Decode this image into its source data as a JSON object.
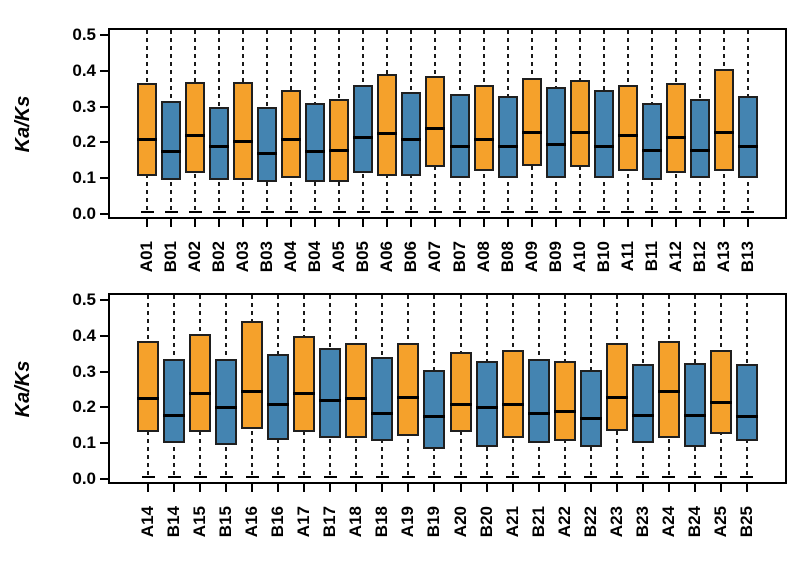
{
  "figure": {
    "background": "#FFFFFF",
    "axis_color": "#000000",
    "text_color": "#000000",
    "group_colors": {
      "A": "#F5A12B",
      "B": "#4484B1"
    },
    "box_border_color": "#1F1F1F",
    "median_color": "#000000"
  },
  "chart_data": [
    {
      "type": "boxplot",
      "panel": "top",
      "title": "",
      "xlabel": "",
      "ylabel": "Ka/Ks",
      "ylim": [
        0.0,
        0.5
      ],
      "yticks": [
        "0.0",
        "0.1",
        "0.2",
        "0.3",
        "0.4",
        "0.5"
      ],
      "grid": false,
      "legend": "none",
      "whisker_style": "dashed; clipped at top of axis (0.5); capped just above 0 at bottom",
      "categories": [
        "A01",
        "B01",
        "A02",
        "B02",
        "A03",
        "B03",
        "A04",
        "B04",
        "A05",
        "B05",
        "A06",
        "B06",
        "A07",
        "B07",
        "A08",
        "B08",
        "A09",
        "B09",
        "A10",
        "B10",
        "A11",
        "B11",
        "A12",
        "B12",
        "A13",
        "B13"
      ],
      "boxes": [
        {
          "label": "A01",
          "group": "A",
          "q1": 0.105,
          "median": 0.21,
          "q3": 0.365,
          "whisker_low": 0.005,
          "whisker_high": 0.5
        },
        {
          "label": "B01",
          "group": "B",
          "q1": 0.095,
          "median": 0.175,
          "q3": 0.315,
          "whisker_low": 0.005,
          "whisker_high": 0.5
        },
        {
          "label": "A02",
          "group": "A",
          "q1": 0.115,
          "median": 0.22,
          "q3": 0.37,
          "whisker_low": 0.005,
          "whisker_high": 0.5
        },
        {
          "label": "B02",
          "group": "B",
          "q1": 0.095,
          "median": 0.19,
          "q3": 0.3,
          "whisker_low": 0.005,
          "whisker_high": 0.5
        },
        {
          "label": "A03",
          "group": "A",
          "q1": 0.095,
          "median": 0.205,
          "q3": 0.37,
          "whisker_low": 0.005,
          "whisker_high": 0.5
        },
        {
          "label": "B03",
          "group": "B",
          "q1": 0.09,
          "median": 0.17,
          "q3": 0.3,
          "whisker_low": 0.005,
          "whisker_high": 0.5
        },
        {
          "label": "A04",
          "group": "A",
          "q1": 0.1,
          "median": 0.21,
          "q3": 0.345,
          "whisker_low": 0.005,
          "whisker_high": 0.5
        },
        {
          "label": "B04",
          "group": "B",
          "q1": 0.09,
          "median": 0.175,
          "q3": 0.31,
          "whisker_low": 0.005,
          "whisker_high": 0.5
        },
        {
          "label": "A05",
          "group": "A",
          "q1": 0.09,
          "median": 0.18,
          "q3": 0.32,
          "whisker_low": 0.005,
          "whisker_high": 0.5
        },
        {
          "label": "B05",
          "group": "B",
          "q1": 0.115,
          "median": 0.215,
          "q3": 0.36,
          "whisker_low": 0.005,
          "whisker_high": 0.5
        },
        {
          "label": "A06",
          "group": "A",
          "q1": 0.105,
          "median": 0.225,
          "q3": 0.39,
          "whisker_low": 0.005,
          "whisker_high": 0.5
        },
        {
          "label": "B06",
          "group": "B",
          "q1": 0.105,
          "median": 0.21,
          "q3": 0.34,
          "whisker_low": 0.005,
          "whisker_high": 0.5
        },
        {
          "label": "A07",
          "group": "A",
          "q1": 0.13,
          "median": 0.24,
          "q3": 0.385,
          "whisker_low": 0.005,
          "whisker_high": 0.5
        },
        {
          "label": "B07",
          "group": "B",
          "q1": 0.1,
          "median": 0.19,
          "q3": 0.335,
          "whisker_low": 0.005,
          "whisker_high": 0.5
        },
        {
          "label": "A08",
          "group": "A",
          "q1": 0.12,
          "median": 0.21,
          "q3": 0.36,
          "whisker_low": 0.005,
          "whisker_high": 0.5
        },
        {
          "label": "B08",
          "group": "B",
          "q1": 0.1,
          "median": 0.19,
          "q3": 0.33,
          "whisker_low": 0.005,
          "whisker_high": 0.5
        },
        {
          "label": "A09",
          "group": "A",
          "q1": 0.135,
          "median": 0.23,
          "q3": 0.38,
          "whisker_low": 0.005,
          "whisker_high": 0.5
        },
        {
          "label": "B09",
          "group": "B",
          "q1": 0.1,
          "median": 0.195,
          "q3": 0.355,
          "whisker_low": 0.005,
          "whisker_high": 0.5
        },
        {
          "label": "A10",
          "group": "A",
          "q1": 0.13,
          "median": 0.23,
          "q3": 0.375,
          "whisker_low": 0.005,
          "whisker_high": 0.5
        },
        {
          "label": "B10",
          "group": "B",
          "q1": 0.1,
          "median": 0.19,
          "q3": 0.345,
          "whisker_low": 0.005,
          "whisker_high": 0.5
        },
        {
          "label": "A11",
          "group": "A",
          "q1": 0.12,
          "median": 0.22,
          "q3": 0.36,
          "whisker_low": 0.005,
          "whisker_high": 0.5
        },
        {
          "label": "B11",
          "group": "B",
          "q1": 0.095,
          "median": 0.18,
          "q3": 0.31,
          "whisker_low": 0.005,
          "whisker_high": 0.5
        },
        {
          "label": "A12",
          "group": "A",
          "q1": 0.115,
          "median": 0.215,
          "q3": 0.365,
          "whisker_low": 0.005,
          "whisker_high": 0.5
        },
        {
          "label": "B12",
          "group": "B",
          "q1": 0.1,
          "median": 0.18,
          "q3": 0.32,
          "whisker_low": 0.005,
          "whisker_high": 0.5
        },
        {
          "label": "A13",
          "group": "A",
          "q1": 0.12,
          "median": 0.23,
          "q3": 0.405,
          "whisker_low": 0.005,
          "whisker_high": 0.5
        },
        {
          "label": "B13",
          "group": "B",
          "q1": 0.1,
          "median": 0.19,
          "q3": 0.33,
          "whisker_low": 0.005,
          "whisker_high": 0.5
        }
      ]
    },
    {
      "type": "boxplot",
      "panel": "bottom",
      "title": "",
      "xlabel": "",
      "ylabel": "Ka/Ks",
      "ylim": [
        0.0,
        0.5
      ],
      "yticks": [
        "0.0",
        "0.1",
        "0.2",
        "0.3",
        "0.4",
        "0.5"
      ],
      "grid": false,
      "legend": "none",
      "whisker_style": "dashed; clipped at top of axis (0.5); capped just above 0 at bottom",
      "categories": [
        "A14",
        "B14",
        "A15",
        "B15",
        "A16",
        "B16",
        "A17",
        "B17",
        "A18",
        "B18",
        "A19",
        "B19",
        "A20",
        "B20",
        "A21",
        "B21",
        "A22",
        "B22",
        "A23",
        "B23",
        "A24",
        "B24",
        "A25",
        "B25"
      ],
      "boxes": [
        {
          "label": "A14",
          "group": "A",
          "q1": 0.13,
          "median": 0.225,
          "q3": 0.385,
          "whisker_low": 0.005,
          "whisker_high": 0.5
        },
        {
          "label": "B14",
          "group": "B",
          "q1": 0.1,
          "median": 0.18,
          "q3": 0.335,
          "whisker_low": 0.005,
          "whisker_high": 0.5
        },
        {
          "label": "A15",
          "group": "A",
          "q1": 0.13,
          "median": 0.24,
          "q3": 0.405,
          "whisker_low": 0.005,
          "whisker_high": 0.5
        },
        {
          "label": "B15",
          "group": "B",
          "q1": 0.095,
          "median": 0.2,
          "q3": 0.335,
          "whisker_low": 0.005,
          "whisker_high": 0.5
        },
        {
          "label": "A16",
          "group": "A",
          "q1": 0.14,
          "median": 0.245,
          "q3": 0.44,
          "whisker_low": 0.005,
          "whisker_high": 0.5
        },
        {
          "label": "B16",
          "group": "B",
          "q1": 0.11,
          "median": 0.21,
          "q3": 0.35,
          "whisker_low": 0.005,
          "whisker_high": 0.5
        },
        {
          "label": "A17",
          "group": "A",
          "q1": 0.13,
          "median": 0.24,
          "q3": 0.4,
          "whisker_low": 0.005,
          "whisker_high": 0.5
        },
        {
          "label": "B17",
          "group": "B",
          "q1": 0.115,
          "median": 0.22,
          "q3": 0.365,
          "whisker_low": 0.005,
          "whisker_high": 0.5
        },
        {
          "label": "A18",
          "group": "A",
          "q1": 0.115,
          "median": 0.225,
          "q3": 0.38,
          "whisker_low": 0.005,
          "whisker_high": 0.5
        },
        {
          "label": "B18",
          "group": "B",
          "q1": 0.105,
          "median": 0.185,
          "q3": 0.34,
          "whisker_low": 0.005,
          "whisker_high": 0.5
        },
        {
          "label": "A19",
          "group": "A",
          "q1": 0.12,
          "median": 0.23,
          "q3": 0.38,
          "whisker_low": 0.005,
          "whisker_high": 0.5
        },
        {
          "label": "B19",
          "group": "B",
          "q1": 0.085,
          "median": 0.175,
          "q3": 0.305,
          "whisker_low": 0.005,
          "whisker_high": 0.5
        },
        {
          "label": "A20",
          "group": "A",
          "q1": 0.13,
          "median": 0.21,
          "q3": 0.355,
          "whisker_low": 0.005,
          "whisker_high": 0.5
        },
        {
          "label": "B20",
          "group": "B",
          "q1": 0.09,
          "median": 0.2,
          "q3": 0.33,
          "whisker_low": 0.005,
          "whisker_high": 0.5
        },
        {
          "label": "A21",
          "group": "A",
          "q1": 0.115,
          "median": 0.21,
          "q3": 0.36,
          "whisker_low": 0.005,
          "whisker_high": 0.5
        },
        {
          "label": "B21",
          "group": "B",
          "q1": 0.1,
          "median": 0.185,
          "q3": 0.335,
          "whisker_low": 0.005,
          "whisker_high": 0.5
        },
        {
          "label": "A22",
          "group": "A",
          "q1": 0.105,
          "median": 0.19,
          "q3": 0.33,
          "whisker_low": 0.005,
          "whisker_high": 0.5
        },
        {
          "label": "B22",
          "group": "B",
          "q1": 0.09,
          "median": 0.17,
          "q3": 0.305,
          "whisker_low": 0.005,
          "whisker_high": 0.5
        },
        {
          "label": "A23",
          "group": "A",
          "q1": 0.135,
          "median": 0.23,
          "q3": 0.38,
          "whisker_low": 0.005,
          "whisker_high": 0.5
        },
        {
          "label": "B23",
          "group": "B",
          "q1": 0.1,
          "median": 0.18,
          "q3": 0.32,
          "whisker_low": 0.005,
          "whisker_high": 0.5
        },
        {
          "label": "A24",
          "group": "A",
          "q1": 0.115,
          "median": 0.245,
          "q3": 0.385,
          "whisker_low": 0.005,
          "whisker_high": 0.5
        },
        {
          "label": "B24",
          "group": "B",
          "q1": 0.09,
          "median": 0.18,
          "q3": 0.325,
          "whisker_low": 0.005,
          "whisker_high": 0.5
        },
        {
          "label": "A25",
          "group": "A",
          "q1": 0.125,
          "median": 0.215,
          "q3": 0.36,
          "whisker_low": 0.005,
          "whisker_high": 0.5
        },
        {
          "label": "B25",
          "group": "B",
          "q1": 0.105,
          "median": 0.175,
          "q3": 0.32,
          "whisker_low": 0.005,
          "whisker_high": 0.5
        }
      ]
    }
  ]
}
